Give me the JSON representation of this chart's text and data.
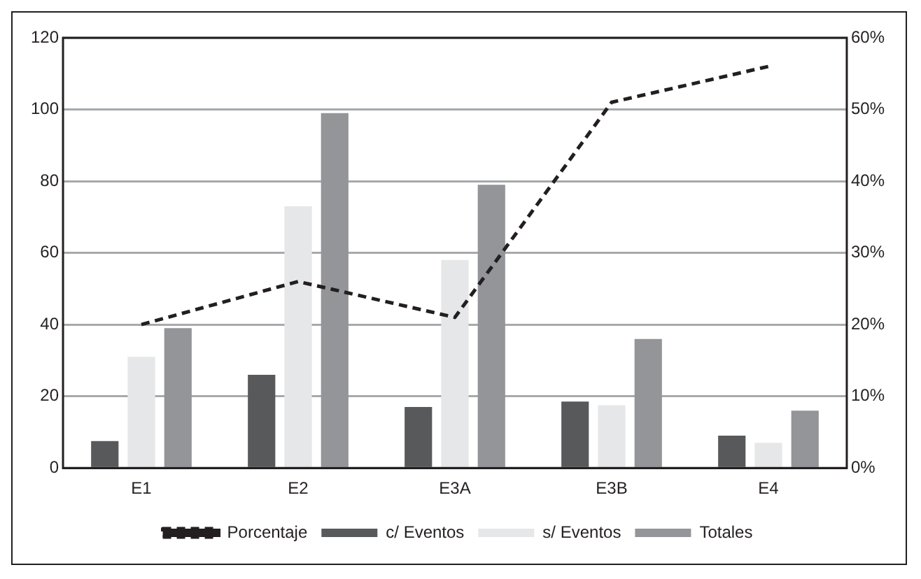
{
  "chart_data": {
    "type": "bar",
    "categories": [
      "E1",
      "E2",
      "E3A",
      "E3B",
      "E4"
    ],
    "series": [
      {
        "name": "c/ Eventos",
        "color": "#58595b",
        "values": [
          7.5,
          26,
          17,
          18.5,
          9
        ]
      },
      {
        "name": "s/ Eventos",
        "color": "#e6e7e8",
        "values": [
          31,
          73,
          58,
          17.5,
          7
        ]
      },
      {
        "name": "Totales",
        "color": "#939598",
        "values": [
          39,
          99,
          79,
          36,
          16
        ]
      },
      {
        "name": "Porcentaje",
        "type": "line",
        "axis": "y2",
        "color": "#231f20",
        "line_style": "dashed",
        "marker": "none",
        "values": [
          20,
          26,
          21,
          51,
          56
        ]
      }
    ],
    "ylim": [
      0,
      120
    ],
    "yticks": [
      0,
      20,
      40,
      60,
      80,
      100,
      120
    ],
    "y2lim": [
      0,
      60
    ],
    "y2ticks": [
      {
        "value": 0,
        "label": "0%"
      },
      {
        "value": 10,
        "label": "10%"
      },
      {
        "value": 20,
        "label": "20%"
      },
      {
        "value": 30,
        "label": "30%"
      },
      {
        "value": 40,
        "label": "40%"
      },
      {
        "value": 50,
        "label": "50%"
      },
      {
        "value": 60,
        "label": "60%"
      }
    ],
    "grid": "y",
    "legend": "bottom"
  }
}
